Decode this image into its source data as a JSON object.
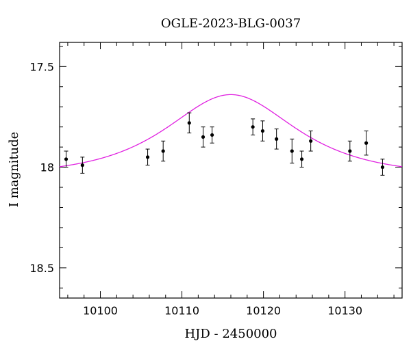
{
  "chart_data": {
    "type": "scatter",
    "title": "OGLE-2023-BLG-0037",
    "xlabel": "HJD - 2450000",
    "ylabel": "I magnitude",
    "xlim": [
      10095,
      10137
    ],
    "ylim": [
      18.65,
      17.38
    ],
    "y_inverted": true,
    "x_major_ticks": [
      10100,
      10110,
      10120,
      10130
    ],
    "x_tick_labels": [
      "10100",
      "10110",
      "10120",
      "10130"
    ],
    "x_minor_step": 2,
    "y_major_ticks": [
      17.5,
      18.0,
      18.5
    ],
    "y_tick_labels": [
      "17.5",
      "18",
      "18.5"
    ],
    "y_minor_step": 0.1,
    "grid": false,
    "colors": {
      "points": "#000000",
      "model": "#e020e0"
    },
    "series": [
      {
        "type": "errorbar-points",
        "x": [
          10095.8,
          10097.8,
          10105.8,
          10107.7,
          10110.9,
          10112.6,
          10113.7,
          10118.7,
          10119.9,
          10121.6,
          10123.5,
          10124.7,
          10125.8,
          10130.6,
          10132.6,
          10134.6
        ],
        "y": [
          17.96,
          17.99,
          17.95,
          17.92,
          17.78,
          17.85,
          17.84,
          17.8,
          17.82,
          17.86,
          17.92,
          17.96,
          17.87,
          17.92,
          17.88,
          18.0
        ],
        "yerr": [
          0.04,
          0.04,
          0.04,
          0.05,
          0.05,
          0.05,
          0.04,
          0.04,
          0.05,
          0.05,
          0.06,
          0.04,
          0.05,
          0.05,
          0.06,
          0.04
        ]
      },
      {
        "type": "model-curve",
        "model": {
          "t0": 10116.0,
          "u0": 0.87,
          "tE": 10.3,
          "baseline": 18.045
        }
      }
    ]
  }
}
